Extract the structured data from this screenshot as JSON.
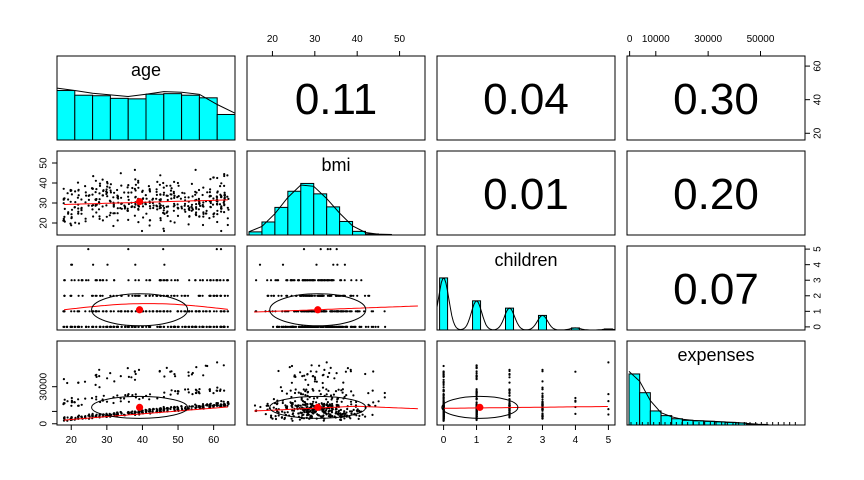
{
  "chart_data": {
    "type": "scatter-matrix",
    "variables": [
      "age",
      "bmi",
      "children",
      "expenses"
    ],
    "correlations": {
      "age_bmi": "0.11",
      "age_children": "0.04",
      "age_expenses": "0.30",
      "bmi_children": "0.01",
      "bmi_expenses": "0.20",
      "children_expenses": "0.07"
    },
    "axes": {
      "age": {
        "range": [
          16,
          66
        ],
        "ticks": [
          20,
          30,
          40,
          50,
          60
        ]
      },
      "bmi": {
        "range": [
          14,
          56
        ],
        "ticks": [
          20,
          30,
          40,
          50
        ]
      },
      "children": {
        "range": [
          -0.2,
          5.2
        ],
        "ticks": [
          0,
          1,
          2,
          3,
          4,
          5
        ]
      },
      "expenses": {
        "range": [
          -1000,
          67000
        ],
        "ticks": [
          0,
          10000,
          30000,
          50000
        ],
        "left_ticks": [
          0,
          10000,
          30000
        ],
        "left_tick_labels": [
          "0",
          "",
          "30000"
        ]
      }
    },
    "right_axes": {
      "age": [
        20,
        40,
        60
      ],
      "children": [
        0,
        1,
        2,
        3,
        4,
        5
      ]
    },
    "histograms": {
      "age": [
        0.95,
        0.86,
        0.85,
        0.8,
        0.79,
        0.88,
        0.89,
        0.86,
        0.81,
        0.49
      ],
      "bmi": [
        0.06,
        0.25,
        0.53,
        0.84,
        0.99,
        0.79,
        0.54,
        0.26,
        0.07,
        0.02,
        0.01
      ],
      "children": [
        {
          "x": 0,
          "h": 1.0
        },
        {
          "x": 1,
          "h": 0.56
        },
        {
          "x": 2,
          "h": 0.42
        },
        {
          "x": 3,
          "h": 0.28
        },
        {
          "x": 4,
          "h": 0.04
        },
        {
          "x": 5,
          "h": 0.02
        }
      ],
      "expenses": [
        0.98,
        0.62,
        0.27,
        0.18,
        0.12,
        0.09,
        0.08,
        0.07,
        0.06,
        0.05,
        0.04,
        0.02,
        0.01
      ]
    },
    "means": {
      "age": 39.2,
      "bmi": 30.7,
      "children": 1.1,
      "expenses": 13270
    }
  }
}
